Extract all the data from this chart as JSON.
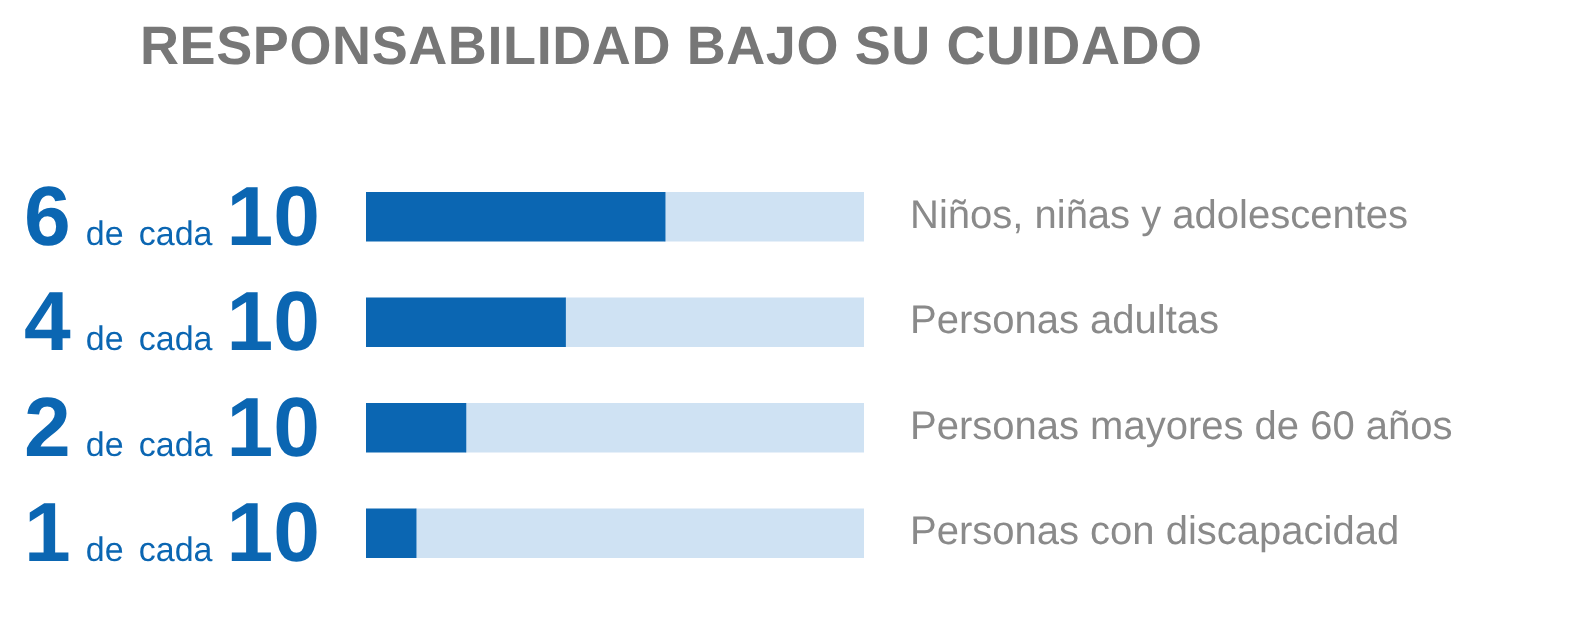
{
  "chart_data": {
    "type": "bar",
    "orientation": "horizontal",
    "stacked": true,
    "title": "RESPONSABILIDAD BAJO SU CUIDADO",
    "categories": [
      "Niños, niñas y adolescentes",
      "Personas adultas",
      "Personas mayores de 60 años",
      "Personas con discapacidad"
    ],
    "series": [
      {
        "color": "#0b66b2",
        "values": [
          6,
          4,
          2,
          1
        ],
        "value_labels": [
          "6 de cada 10",
          "4 de cada 10",
          "2 de cada 10",
          "1 de cada 10"
        ]
      },
      {
        "color": "#cfe2f3",
        "values": [
          4,
          6,
          8,
          9
        ]
      }
    ],
    "xlim": [
      0,
      10
    ],
    "tick_labels": "y",
    "legend": false
  }
}
